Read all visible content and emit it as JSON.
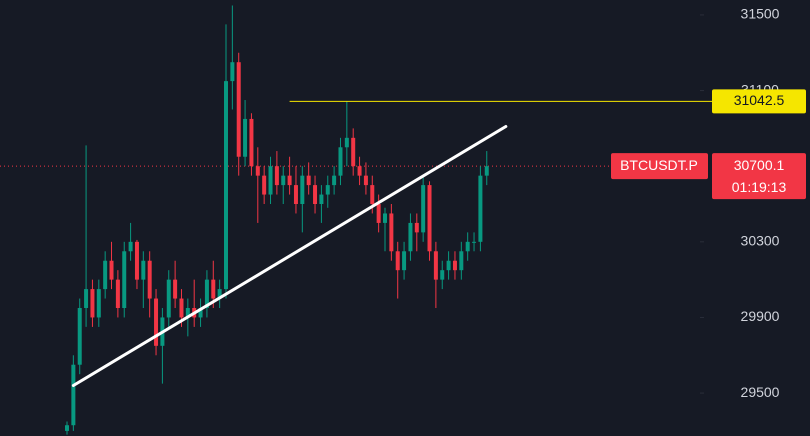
{
  "chart_data": {
    "type": "candlestick",
    "ylim": [
      29273,
      31579
    ],
    "yticks": [
      29500,
      29900,
      30300,
      30700,
      31100,
      31500
    ],
    "up_color": "#089981",
    "down_color": "#f23645",
    "candles": [
      [
        29300,
        29350,
        29280,
        29330
      ],
      [
        29330,
        29700,
        29300,
        29650
      ],
      [
        29650,
        30000,
        29600,
        29950
      ],
      [
        29950,
        30810,
        29850,
        30050
      ],
      [
        30050,
        30100,
        29850,
        29900
      ],
      [
        29900,
        30100,
        29850,
        30050
      ],
      [
        30050,
        30250,
        30000,
        30200
      ],
      [
        30200,
        30300,
        30050,
        30100
      ],
      [
        30100,
        30150,
        29900,
        29950
      ],
      [
        29950,
        30300,
        29900,
        30250
      ],
      [
        30250,
        30400,
        30200,
        30300
      ],
      [
        30300,
        30310,
        30050,
        30100
      ],
      [
        30100,
        30250,
        29950,
        30200
      ],
      [
        30200,
        30250,
        29900,
        30000
      ],
      [
        30000,
        30050,
        29700,
        29750
      ],
      [
        29750,
        29950,
        29550,
        29900
      ],
      [
        29900,
        30150,
        29850,
        30100
      ],
      [
        30100,
        30200,
        29950,
        30000
      ],
      [
        30000,
        30050,
        29850,
        29900
      ],
      [
        29900,
        30000,
        29800,
        29950
      ],
      [
        29950,
        30100,
        29850,
        29900
      ],
      [
        29900,
        30000,
        29850,
        29950
      ],
      [
        29950,
        30150,
        29900,
        30100
      ],
      [
        30100,
        30200,
        29950,
        30000
      ],
      [
        30000,
        30100,
        29950,
        30050
      ],
      [
        30050,
        31450,
        30000,
        31150
      ],
      [
        31150,
        31550,
        31000,
        31250
      ],
      [
        31250,
        31300,
        30650,
        30750
      ],
      [
        30750,
        31050,
        30700,
        30950
      ],
      [
        30950,
        30980,
        30650,
        30700
      ],
      [
        30700,
        30800,
        30400,
        30650
      ],
      [
        30650,
        30700,
        30500,
        30550
      ],
      [
        30550,
        30750,
        30500,
        30700
      ],
      [
        30700,
        30780,
        30550,
        30600
      ],
      [
        30600,
        30700,
        30500,
        30650
      ],
      [
        30650,
        30750,
        30550,
        30600
      ],
      [
        30600,
        30700,
        30450,
        30500
      ],
      [
        30500,
        30700,
        30350,
        30650
      ],
      [
        30650,
        30720,
        30550,
        30600
      ],
      [
        30600,
        30650,
        30450,
        30500
      ],
      [
        30500,
        30600,
        30400,
        30550
      ],
      [
        30550,
        30650,
        30480,
        30600
      ],
      [
        30600,
        30700,
        30550,
        30650
      ],
      [
        30650,
        30850,
        30600,
        30800
      ],
      [
        30800,
        31042.5,
        30700,
        30850
      ],
      [
        30850,
        30900,
        30650,
        30700
      ],
      [
        30700,
        30750,
        30600,
        30650
      ],
      [
        30650,
        30720,
        30550,
        30600
      ],
      [
        30600,
        30650,
        30450,
        30500
      ],
      [
        30500,
        30550,
        30350,
        30400
      ],
      [
        30400,
        30480,
        30250,
        30450
      ],
      [
        30450,
        30500,
        30200,
        30250
      ],
      [
        30250,
        30300,
        30000,
        30150
      ],
      [
        30150,
        30300,
        30100,
        30250
      ],
      [
        30250,
        30450,
        30200,
        30400
      ],
      [
        30400,
        30450,
        30250,
        30350
      ],
      [
        30350,
        30650,
        30300,
        30600
      ],
      [
        30600,
        30620,
        30200,
        30250
      ],
      [
        30250,
        30300,
        29950,
        30100
      ],
      [
        30100,
        30200,
        30050,
        30150
      ],
      [
        30150,
        30250,
        30100,
        30200
      ],
      [
        30200,
        30250,
        30100,
        30150
      ],
      [
        30150,
        30300,
        30100,
        30250
      ],
      [
        30250,
        30350,
        30200,
        30300
      ],
      [
        30300,
        30350,
        30250,
        30300
      ],
      [
        30300,
        30700,
        30250,
        30650
      ],
      [
        30650,
        30780,
        30600,
        30700.1
      ]
    ],
    "trendline": {
      "x": [
        1,
        69
      ],
      "y": [
        29540,
        30910
      ],
      "color": "#ffffff"
    },
    "level": {
      "value": 31042.5,
      "start": 35,
      "color": "#f5e600"
    },
    "symbol": "BTCUSDT.P",
    "last_price": 30700.1,
    "countdown": "01:19:13"
  }
}
